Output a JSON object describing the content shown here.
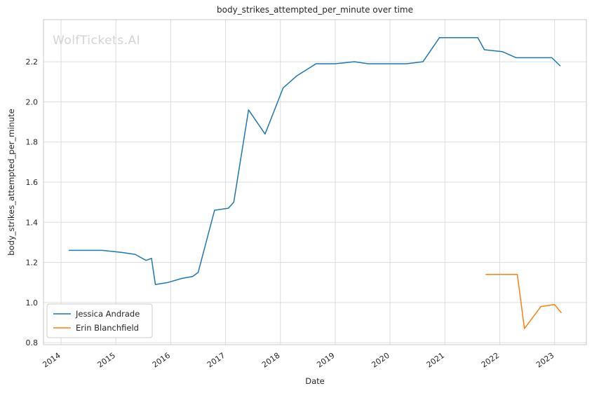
{
  "watermark": "WolfTickets.AI",
  "chart_data": {
    "type": "line",
    "title": "body_strikes_attempted_per_minute over time",
    "xlabel": "Date",
    "ylabel": "body_strikes_attempted_per_minute",
    "xlim": [
      2013.68,
      2023.58
    ],
    "ylim": [
      0.79,
      2.41
    ],
    "x_ticks": [
      2014,
      2015,
      2016,
      2017,
      2018,
      2019,
      2020,
      2021,
      2022,
      2023
    ],
    "y_ticks": [
      0.8,
      1.0,
      1.2,
      1.4,
      1.6,
      1.8,
      2.0,
      2.2
    ],
    "grid": true,
    "legend_position": "lower left",
    "colors": {
      "series1": "#1f77b4",
      "series2": "#ff7f0e",
      "grid": "#dcdcdc",
      "border": "#c9c9c9",
      "text": "#262626",
      "watermark": "#d4d4d4"
    },
    "series": [
      {
        "name": "Jessica Andrade",
        "color": "#1f77b4",
        "x": [
          2014.15,
          2014.5,
          2014.75,
          2015.1,
          2015.35,
          2015.55,
          2015.65,
          2015.72,
          2015.95,
          2016.2,
          2016.4,
          2016.5,
          2016.8,
          2017.05,
          2017.15,
          2017.42,
          2017.72,
          2018.05,
          2018.3,
          2018.65,
          2019.0,
          2019.35,
          2019.6,
          2019.95,
          2020.3,
          2020.6,
          2020.9,
          2021.3,
          2021.6,
          2021.72,
          2022.05,
          2022.3,
          2022.65,
          2022.95,
          2023.1
        ],
        "y": [
          1.26,
          1.26,
          1.26,
          1.25,
          1.24,
          1.21,
          1.22,
          1.09,
          1.1,
          1.12,
          1.13,
          1.15,
          1.46,
          1.47,
          1.5,
          1.96,
          1.84,
          2.07,
          2.13,
          2.19,
          2.19,
          2.2,
          2.19,
          2.19,
          2.19,
          2.2,
          2.32,
          2.32,
          2.32,
          2.26,
          2.25,
          2.22,
          2.22,
          2.22,
          2.18
        ]
      },
      {
        "name": "Erin Blanchfield",
        "color": "#ff7f0e",
        "x": [
          2021.75,
          2022.1,
          2022.32,
          2022.45,
          2022.75,
          2023.0,
          2023.12
        ],
        "y": [
          1.14,
          1.14,
          1.14,
          0.87,
          0.98,
          0.99,
          0.95
        ]
      }
    ]
  }
}
